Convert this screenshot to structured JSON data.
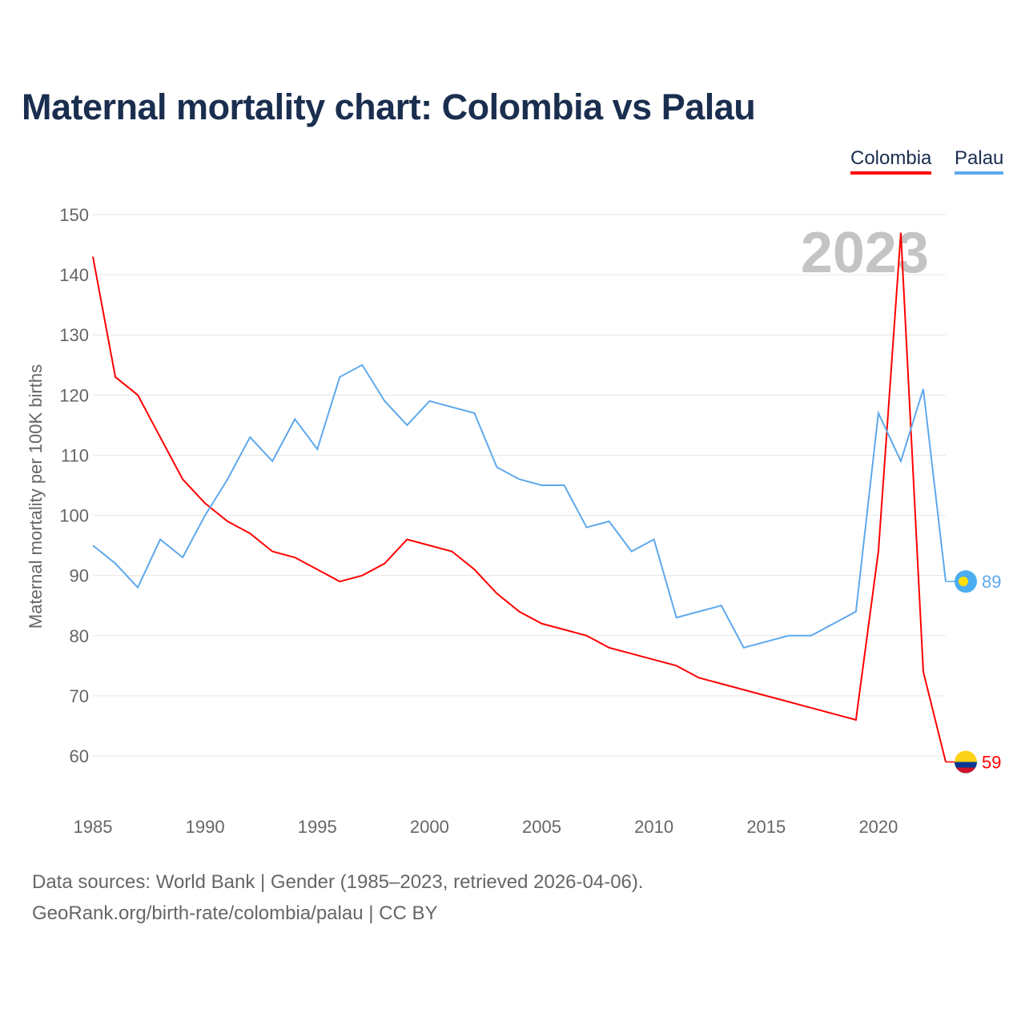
{
  "title": "Maternal mortality chart: Colombia vs Palau",
  "chart_data": {
    "type": "line",
    "title": "Maternal mortality chart: Colombia vs Palau",
    "xlabel": "",
    "ylabel": "Maternal mortality per 100K births",
    "ylim": [
      60,
      150
    ],
    "xlim": [
      1985,
      2023
    ],
    "yticks": [
      60,
      70,
      80,
      90,
      100,
      110,
      120,
      130,
      140,
      150
    ],
    "xticks": [
      1985,
      1990,
      1995,
      2000,
      2005,
      2010,
      2015,
      2020
    ],
    "grid": true,
    "legend_position": "top-right",
    "year_annotation": "2023",
    "x": [
      1985,
      1986,
      1987,
      1988,
      1989,
      1990,
      1991,
      1992,
      1993,
      1994,
      1995,
      1996,
      1997,
      1998,
      1999,
      2000,
      2001,
      2002,
      2003,
      2004,
      2005,
      2006,
      2007,
      2008,
      2009,
      2010,
      2011,
      2012,
      2013,
      2014,
      2015,
      2016,
      2017,
      2018,
      2019,
      2020,
      2021,
      2022,
      2023
    ],
    "series": [
      {
        "name": "Colombia",
        "color": "#ff0000",
        "end_label": "59",
        "values": [
          143,
          123,
          120,
          113,
          106,
          102,
          99,
          97,
          94,
          93,
          91,
          89,
          90,
          92,
          96,
          95,
          94,
          91,
          87,
          84,
          82,
          81,
          80,
          78,
          77,
          76,
          75,
          73,
          72,
          71,
          70,
          69,
          68,
          67,
          66,
          94,
          147,
          74,
          59
        ]
      },
      {
        "name": "Palau",
        "color": "#5ea8ec",
        "end_label": "89",
        "values": [
          95,
          92,
          88,
          96,
          93,
          100,
          106,
          113,
          109,
          116,
          111,
          123,
          125,
          119,
          115,
          119,
          118,
          117,
          108,
          106,
          105,
          105,
          98,
          99,
          94,
          96,
          83,
          84,
          85,
          78,
          79,
          80,
          80,
          82,
          84,
          117,
          109,
          121,
          89
        ]
      }
    ]
  },
  "source_line1": "Data sources: World Bank | Gender (1985–2023, retrieved 2026-04-06).",
  "source_line2": "GeoRank.org/birth-rate/colombia/palau | CC BY"
}
